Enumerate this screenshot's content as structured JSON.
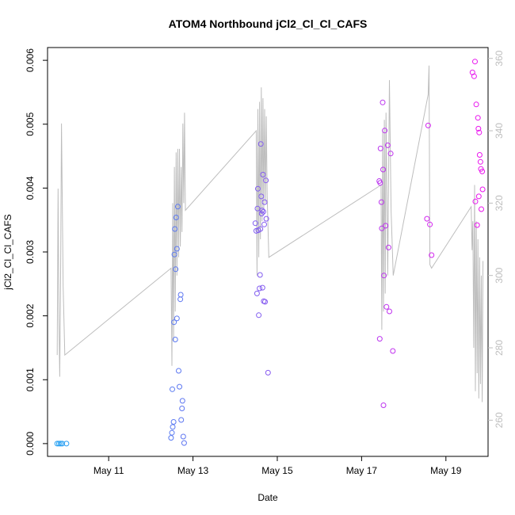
{
  "chart_data": {
    "type": "scatter",
    "title": "ATOM4 Northbound jCl2_Cl_Cl_CAFS",
    "xlabel": "Date",
    "ylabel": "jCl2_Cl_Cl_CAFS",
    "x_ticks": [
      "May 11",
      "May 13",
      "May 15",
      "May 17",
      "May 19"
    ],
    "x_tick_days": [
      11,
      13,
      15,
      17,
      19
    ],
    "xlim_days": [
      9.55,
      20.0
    ],
    "ylim": [
      -0.0002,
      0.0062
    ],
    "y_ticks": [
      0.0,
      0.001,
      0.002,
      0.003,
      0.004,
      0.005,
      0.006
    ],
    "y_tick_labels": [
      "0.000",
      "0.001",
      "0.002",
      "0.003",
      "0.004",
      "0.005",
      "0.006"
    ],
    "secondary_axis": {
      "ticks": [
        260,
        280,
        300,
        320,
        340,
        360
      ],
      "tick_labels": [
        "260",
        "280",
        "300",
        "320",
        "340",
        "360"
      ],
      "lim": [
        250,
        363
      ],
      "color": "#bdbdbd"
    },
    "grid": false,
    "colors": {
      "scatter_start": "#1fa3f2",
      "scatter_end": "#ee11ee",
      "line": "#bdbdbd"
    },
    "points": [
      [
        9.78,
        0.0
      ],
      [
        9.82,
        0.0
      ],
      [
        9.86,
        0.0
      ],
      [
        9.9,
        0.0
      ],
      [
        10.0,
        0.0
      ],
      [
        12.48,
        9e-05
      ],
      [
        12.5,
        0.00017
      ],
      [
        12.52,
        0.00026
      ],
      [
        12.51,
        0.00085
      ],
      [
        12.54,
        0.00034
      ],
      [
        12.55,
        0.0019
      ],
      [
        12.58,
        0.00163
      ],
      [
        12.56,
        0.00296
      ],
      [
        12.57,
        0.00336
      ],
      [
        12.59,
        0.00273
      ],
      [
        12.62,
        0.00196
      ],
      [
        12.6,
        0.00354
      ],
      [
        12.62,
        0.00305
      ],
      [
        12.64,
        0.00371
      ],
      [
        12.66,
        0.00114
      ],
      [
        12.68,
        0.00089
      ],
      [
        12.7,
        0.00226
      ],
      [
        12.71,
        0.00233
      ],
      [
        12.72,
        0.00037
      ],
      [
        12.74,
        0.00055
      ],
      [
        12.75,
        0.00067
      ],
      [
        12.77,
        0.00011
      ],
      [
        12.79,
        1e-05
      ],
      [
        14.48,
        0.00345
      ],
      [
        14.5,
        0.00333
      ],
      [
        14.52,
        0.00235
      ],
      [
        14.53,
        0.00368
      ],
      [
        14.54,
        0.00399
      ],
      [
        14.55,
        0.00334
      ],
      [
        14.56,
        0.00201
      ],
      [
        14.58,
        0.00243
      ],
      [
        14.59,
        0.00264
      ],
      [
        14.6,
        0.00336
      ],
      [
        14.61,
        0.00469
      ],
      [
        14.62,
        0.00387
      ],
      [
        14.63,
        0.0036
      ],
      [
        14.64,
        0.00365
      ],
      [
        14.65,
        0.00244
      ],
      [
        14.66,
        0.00421
      ],
      [
        14.67,
        0.00363
      ],
      [
        14.68,
        0.00223
      ],
      [
        14.69,
        0.00343
      ],
      [
        14.7,
        0.00378
      ],
      [
        14.71,
        0.00222
      ],
      [
        14.73,
        0.00412
      ],
      [
        14.74,
        0.00352
      ],
      [
        14.78,
        0.00111
      ],
      [
        17.42,
        0.00411
      ],
      [
        17.43,
        0.00164
      ],
      [
        17.44,
        0.00408
      ],
      [
        17.45,
        0.00462
      ],
      [
        17.47,
        0.00378
      ],
      [
        17.48,
        0.00337
      ],
      [
        17.5,
        0.00534
      ],
      [
        17.51,
        0.00429
      ],
      [
        17.52,
        0.0006
      ],
      [
        17.53,
        0.00263
      ],
      [
        17.55,
        0.0049
      ],
      [
        17.57,
        0.00341
      ],
      [
        17.59,
        0.00214
      ],
      [
        17.62,
        0.00467
      ],
      [
        17.64,
        0.00307
      ],
      [
        17.66,
        0.00207
      ],
      [
        17.69,
        0.00454
      ],
      [
        17.74,
        0.00145
      ],
      [
        18.55,
        0.00352
      ],
      [
        18.58,
        0.00498
      ],
      [
        18.62,
        0.00343
      ],
      [
        18.66,
        0.00295
      ],
      [
        19.63,
        0.00581
      ],
      [
        19.67,
        0.00575
      ],
      [
        19.69,
        0.00598
      ],
      [
        19.7,
        0.00379
      ],
      [
        19.72,
        0.00531
      ],
      [
        19.74,
        0.00342
      ],
      [
        19.76,
        0.0051
      ],
      [
        19.77,
        0.00493
      ],
      [
        19.78,
        0.00387
      ],
      [
        19.79,
        0.00487
      ],
      [
        19.8,
        0.00452
      ],
      [
        19.82,
        0.00441
      ],
      [
        19.83,
        0.0043
      ],
      [
        19.84,
        0.00367
      ],
      [
        19.86,
        0.00426
      ],
      [
        19.87,
        0.00398
      ]
    ],
    "line_series": [
      [
        9.78,
        278
      ],
      [
        9.8,
        324
      ],
      [
        9.82,
        287
      ],
      [
        9.84,
        272
      ],
      [
        9.86,
        300
      ],
      [
        9.88,
        342
      ],
      [
        9.92,
        297
      ],
      [
        9.96,
        278
      ],
      [
        12.48,
        302
      ],
      [
        12.5,
        275
      ],
      [
        12.52,
        320
      ],
      [
        12.54,
        282
      ],
      [
        12.56,
        330
      ],
      [
        12.58,
        290
      ],
      [
        12.6,
        334
      ],
      [
        12.62,
        300
      ],
      [
        12.64,
        335
      ],
      [
        12.66,
        305
      ],
      [
        12.68,
        335
      ],
      [
        12.7,
        308
      ],
      [
        12.72,
        330
      ],
      [
        12.74,
        312
      ],
      [
        12.76,
        342
      ],
      [
        12.78,
        320
      ],
      [
        12.8,
        345
      ],
      [
        12.82,
        318
      ],
      [
        14.5,
        340
      ],
      [
        14.52,
        300
      ],
      [
        14.54,
        346
      ],
      [
        14.56,
        305
      ],
      [
        14.58,
        348
      ],
      [
        14.6,
        310
      ],
      [
        14.62,
        352
      ],
      [
        14.64,
        315
      ],
      [
        14.66,
        349
      ],
      [
        14.68,
        318
      ],
      [
        14.7,
        346
      ],
      [
        14.72,
        320
      ],
      [
        14.74,
        344
      ],
      [
        14.76,
        322
      ],
      [
        14.8,
        305
      ],
      [
        17.46,
        325
      ],
      [
        17.48,
        285
      ],
      [
        17.5,
        340
      ],
      [
        17.52,
        290
      ],
      [
        17.54,
        343
      ],
      [
        17.56,
        295
      ],
      [
        17.58,
        345
      ],
      [
        17.62,
        300
      ],
      [
        17.66,
        354
      ],
      [
        17.7,
        318
      ],
      [
        17.75,
        300
      ],
      [
        18.58,
        350
      ],
      [
        18.6,
        358
      ],
      [
        18.62,
        303
      ],
      [
        18.66,
        302
      ],
      [
        19.6,
        319
      ],
      [
        19.62,
        307
      ],
      [
        19.64,
        315
      ],
      [
        19.66,
        280
      ],
      [
        19.68,
        325
      ],
      [
        19.7,
        268
      ],
      [
        19.72,
        315
      ],
      [
        19.74,
        273
      ],
      [
        19.76,
        310
      ],
      [
        19.78,
        266
      ],
      [
        19.8,
        305
      ],
      [
        19.82,
        270
      ],
      [
        19.84,
        300
      ],
      [
        19.86,
        265
      ],
      [
        19.88,
        304
      ]
    ]
  }
}
